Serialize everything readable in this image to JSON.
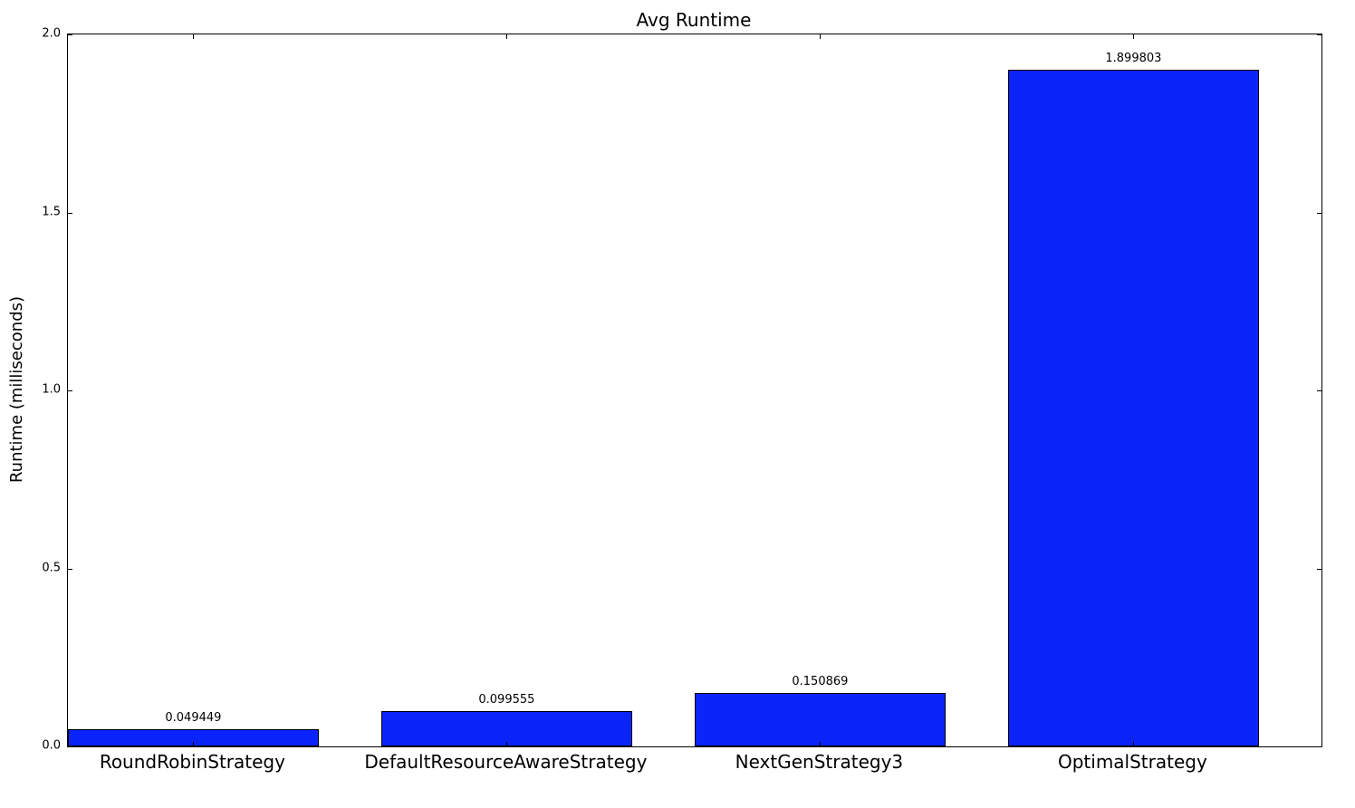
{
  "chart_data": {
    "type": "bar",
    "title": "Avg Runtime",
    "xlabel": "",
    "ylabel": "Runtime (milliseconds)",
    "categories": [
      "RoundRobinStrategy",
      "DefaultResourceAwareStrategy",
      "NextGenStrategy3",
      "OptimalStrategy"
    ],
    "values": [
      0.049449,
      0.099555,
      0.150869,
      1.899803
    ],
    "value_labels": [
      "0.049449",
      "0.099555",
      "0.150869",
      "1.899803"
    ],
    "ylim": [
      0.0,
      2.0
    ],
    "yticks": [
      0.0,
      0.5,
      1.0,
      1.5,
      2.0
    ],
    "ytick_labels": [
      "0.0",
      "0.5",
      "1.0",
      "1.5",
      "2.0"
    ],
    "xlim": [
      0,
      4
    ],
    "bar_width_fraction": 0.8,
    "grid": false,
    "legend": "none",
    "bar_color": "#0b24fa",
    "bar_edge_color": "#000000",
    "axis_color": "#000000",
    "background_color": "#ffffff"
  }
}
